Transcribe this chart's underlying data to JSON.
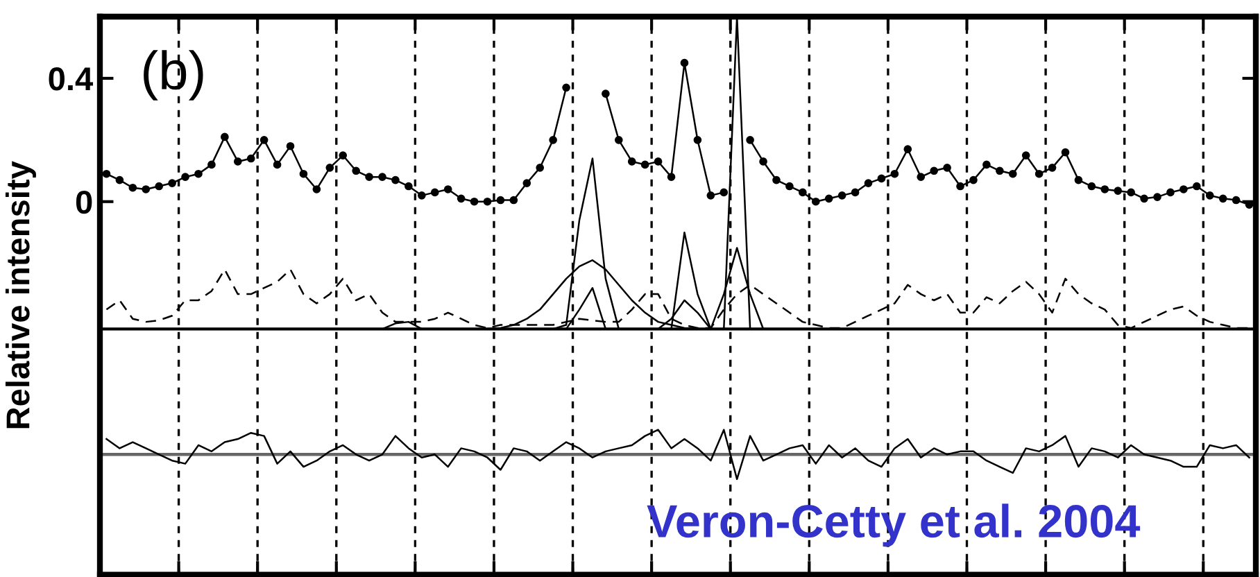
{
  "chart_data": {
    "type": "line",
    "ylabel": "Relative intensity",
    "annotations": [
      "(b)",
      "Veron-Cetty et al. 2004"
    ],
    "categories": [
      null,
      null,
      null,
      null,
      null,
      null,
      null,
      null,
      null,
      null,
      null,
      null,
      null,
      null,
      null,
      null,
      null,
      null,
      null,
      null,
      null,
      null,
      null,
      null,
      null,
      null,
      null,
      null,
      null,
      null,
      null,
      null,
      null,
      null,
      null,
      null,
      null,
      null,
      null,
      null,
      null,
      null,
      null,
      null,
      null,
      null,
      null,
      null,
      null,
      null,
      null,
      null,
      null,
      null,
      null,
      null,
      null,
      null,
      null,
      null,
      null,
      null,
      null,
      null,
      null,
      null,
      null,
      null,
      null,
      null,
      null,
      null,
      null,
      null,
      null,
      null,
      null,
      null,
      null,
      null,
      null,
      null,
      null,
      null,
      null,
      null,
      null,
      null
    ],
    "ylim": [
      -1.21,
      0.6
    ],
    "yticks": [
      0,
      0.4
    ],
    "grid": "x",
    "ref_lines": [
      {
        "axis": "y",
        "value": -0.413,
        "color": "#000000"
      },
      {
        "axis": "y",
        "value": -0.82,
        "color": "#666666"
      }
    ],
    "series": [
      {
        "marker": "circle",
        "color": "#000000",
        "values": [
          0.09,
          0.07,
          0.045,
          0.04,
          0.05,
          0.06,
          0.08,
          0.09,
          0.12,
          0.21,
          0.13,
          0.14,
          0.2,
          0.12,
          0.18,
          0.09,
          0.04,
          0.11,
          0.15,
          0.1,
          0.08,
          0.08,
          0.07,
          0.05,
          0.02,
          0.03,
          0.04,
          0.01,
          0.0,
          0.0,
          0.005,
          0.005,
          0.06,
          0.11,
          0.2,
          0.37,
          null,
          null,
          0.35,
          0.2,
          0.13,
          0.12,
          0.13,
          0.08,
          0.45,
          0.2,
          0.02,
          0.03,
          null,
          0.2,
          0.13,
          0.07,
          0.05,
          0.03,
          0.0,
          0.01,
          0.02,
          0.03,
          0.06,
          0.075,
          0.09,
          0.17,
          0.08,
          0.1,
          0.11,
          0.05,
          0.07,
          0.12,
          0.1,
          0.09,
          0.15,
          0.09,
          0.11,
          0.16,
          0.07,
          0.05,
          0.04,
          0.035,
          0.03,
          0.01,
          0.015,
          0.03,
          0.04,
          0.05,
          0.02,
          0.01,
          0.005,
          -0.01
        ]
      },
      {
        "line_style": "dashed",
        "color": "#000000",
        "values": [
          -0.35,
          -0.32,
          -0.38,
          -0.39,
          -0.385,
          -0.37,
          -0.32,
          -0.32,
          -0.29,
          -0.22,
          -0.3,
          -0.3,
          -0.28,
          -0.26,
          -0.22,
          -0.3,
          -0.33,
          -0.3,
          -0.25,
          -0.32,
          -0.3,
          -0.36,
          -0.39,
          -0.39,
          -0.39,
          -0.38,
          -0.36,
          -0.38,
          -0.4,
          -0.41,
          -0.4,
          -0.4,
          -0.4,
          -0.4,
          -0.4,
          -0.39,
          -0.38,
          -0.385,
          -0.39,
          -0.39,
          -0.35,
          -0.3,
          -0.3,
          -0.38,
          -0.4,
          -0.41,
          -0.41,
          -0.35,
          -0.3,
          -0.27,
          -0.3,
          -0.33,
          -0.36,
          -0.39,
          -0.4,
          -0.41,
          -0.41,
          -0.39,
          -0.37,
          -0.35,
          -0.33,
          -0.27,
          -0.3,
          -0.32,
          -0.3,
          -0.36,
          -0.36,
          -0.31,
          -0.33,
          -0.29,
          -0.26,
          -0.3,
          -0.36,
          -0.25,
          -0.3,
          -0.33,
          -0.35,
          -0.4,
          -0.41,
          -0.39,
          -0.37,
          -0.35,
          -0.34,
          -0.37,
          -0.39,
          -0.4,
          -0.41,
          -0.41
        ]
      },
      {
        "color": "#000000",
        "values": [
          null,
          null,
          null,
          null,
          null,
          null,
          null,
          null,
          null,
          null,
          null,
          null,
          null,
          null,
          null,
          null,
          null,
          null,
          null,
          null,
          null,
          -0.413,
          -0.395,
          -0.39,
          -0.413,
          null,
          null,
          null,
          null,
          null,
          null,
          null,
          null,
          null,
          null,
          null,
          null,
          null,
          null,
          null,
          null,
          null,
          null,
          null,
          null,
          null,
          null,
          null,
          null,
          null,
          null,
          null,
          null,
          null,
          null,
          null,
          null,
          null,
          null,
          null,
          null,
          null,
          null,
          null,
          null,
          null,
          null,
          null,
          null,
          null,
          null,
          null,
          null,
          null,
          null,
          null,
          null,
          null,
          null,
          null,
          null,
          null,
          null,
          null,
          null,
          null,
          null,
          null
        ]
      },
      {
        "color": "#000000",
        "values": [
          null,
          null,
          null,
          null,
          null,
          null,
          null,
          null,
          null,
          null,
          null,
          null,
          null,
          null,
          null,
          null,
          null,
          null,
          null,
          null,
          null,
          null,
          null,
          null,
          null,
          null,
          null,
          null,
          null,
          -0.413,
          -0.41,
          -0.4,
          -0.38,
          -0.35,
          -0.3,
          -0.25,
          -0.21,
          -0.19,
          -0.22,
          -0.27,
          -0.32,
          -0.36,
          -0.39,
          -0.4,
          -0.41,
          -0.413,
          null,
          null,
          null,
          null,
          null,
          null,
          null,
          null,
          null,
          null,
          null,
          null,
          null,
          null,
          null,
          null,
          null,
          null,
          null,
          null,
          null,
          null,
          null,
          null,
          null,
          null,
          null,
          null,
          null,
          null,
          null,
          null,
          null,
          null,
          null,
          null,
          null,
          null,
          null,
          null,
          null,
          null
        ]
      },
      {
        "color": "#000000",
        "values": [
          null,
          null,
          null,
          null,
          null,
          null,
          null,
          null,
          null,
          null,
          null,
          null,
          null,
          null,
          null,
          null,
          null,
          null,
          null,
          null,
          null,
          null,
          null,
          null,
          null,
          null,
          null,
          null,
          null,
          null,
          null,
          null,
          null,
          null,
          -0.413,
          -0.4,
          -0.06,
          0.14,
          -0.25,
          -0.413,
          null,
          null,
          null,
          null,
          null,
          null,
          null,
          null,
          null,
          null,
          null,
          null,
          null,
          null,
          null,
          null,
          null,
          null,
          null,
          null,
          null,
          null,
          null,
          null,
          null,
          null,
          null,
          null,
          null,
          null,
          null,
          null,
          null,
          null,
          null,
          null,
          null,
          null,
          null,
          null,
          null,
          null,
          null,
          null,
          null,
          null,
          null,
          null
        ]
      },
      {
        "color": "#000000",
        "values": [
          null,
          null,
          null,
          null,
          null,
          null,
          null,
          null,
          null,
          null,
          null,
          null,
          null,
          null,
          null,
          null,
          null,
          null,
          null,
          null,
          null,
          null,
          null,
          null,
          null,
          null,
          null,
          null,
          null,
          null,
          null,
          null,
          null,
          null,
          null,
          -0.413,
          -0.35,
          -0.28,
          -0.413,
          null,
          null,
          null,
          null,
          null,
          null,
          null,
          null,
          null,
          null,
          null,
          null,
          null,
          null,
          null,
          null,
          null,
          null,
          null,
          null,
          null,
          null,
          null,
          null,
          null,
          null,
          null,
          null,
          null,
          null,
          null,
          null,
          null,
          null,
          null,
          null,
          null,
          null,
          null,
          null,
          null,
          null,
          null,
          null,
          null,
          null,
          null,
          null,
          null
        ]
      },
      {
        "color": "#000000",
        "values": [
          null,
          null,
          null,
          null,
          null,
          null,
          null,
          null,
          null,
          null,
          null,
          null,
          null,
          null,
          null,
          null,
          null,
          null,
          null,
          null,
          null,
          null,
          null,
          null,
          null,
          null,
          null,
          null,
          null,
          null,
          null,
          null,
          null,
          null,
          null,
          null,
          null,
          null,
          null,
          null,
          null,
          null,
          -0.413,
          -0.38,
          -0.32,
          -0.36,
          -0.413,
          null,
          null,
          null,
          null,
          null,
          null,
          null,
          null,
          null,
          null,
          null,
          null,
          null,
          null,
          null,
          null,
          null,
          null,
          null,
          null,
          null,
          null,
          null,
          null,
          null,
          null,
          null,
          null,
          null,
          null,
          null,
          null,
          null,
          null,
          null,
          null,
          null,
          null,
          null,
          null,
          null
        ]
      },
      {
        "color": "#000000",
        "values": [
          null,
          null,
          null,
          null,
          null,
          null,
          null,
          null,
          null,
          null,
          null,
          null,
          null,
          null,
          null,
          null,
          null,
          null,
          null,
          null,
          null,
          null,
          null,
          null,
          null,
          null,
          null,
          null,
          null,
          null,
          null,
          null,
          null,
          null,
          null,
          null,
          null,
          null,
          null,
          null,
          null,
          null,
          null,
          -0.413,
          -0.1,
          -0.3,
          -0.413,
          null,
          null,
          null,
          null,
          null,
          null,
          null,
          null,
          null,
          null,
          null,
          null,
          null,
          null,
          null,
          null,
          null,
          null,
          null,
          null,
          null,
          null,
          null,
          null,
          null,
          null,
          null,
          null,
          null,
          null,
          null,
          null,
          null,
          null,
          null,
          null,
          null,
          null,
          null,
          null,
          null
        ]
      },
      {
        "color": "#000000",
        "values": [
          null,
          null,
          null,
          null,
          null,
          null,
          null,
          null,
          null,
          null,
          null,
          null,
          null,
          null,
          null,
          null,
          null,
          null,
          null,
          null,
          null,
          null,
          null,
          null,
          null,
          null,
          null,
          null,
          null,
          null,
          null,
          null,
          null,
          null,
          null,
          null,
          null,
          null,
          null,
          null,
          null,
          null,
          null,
          null,
          null,
          null,
          -0.413,
          -0.3,
          -0.15,
          -0.3,
          -0.413,
          null,
          null,
          null,
          null,
          null,
          null,
          null,
          null,
          null,
          null,
          null,
          null,
          null,
          null,
          null,
          null,
          null,
          null,
          null,
          null,
          null,
          null,
          null,
          null,
          null,
          null,
          null,
          null,
          null,
          null,
          null,
          null,
          null,
          null,
          null,
          null,
          null
        ]
      },
      {
        "color": "#000000",
        "values": [
          null,
          null,
          null,
          null,
          null,
          null,
          null,
          null,
          null,
          null,
          null,
          null,
          null,
          null,
          null,
          null,
          null,
          null,
          null,
          null,
          null,
          null,
          null,
          null,
          null,
          null,
          null,
          null,
          null,
          null,
          null,
          null,
          null,
          null,
          null,
          null,
          null,
          null,
          null,
          null,
          null,
          null,
          null,
          null,
          null,
          null,
          null,
          -0.413,
          0.6,
          -0.413,
          null,
          null,
          null,
          null,
          null,
          null,
          null,
          null,
          null,
          null,
          null,
          null,
          null,
          null,
          null,
          null,
          null,
          null,
          null,
          null,
          null,
          null,
          null,
          null,
          null,
          null,
          null,
          null,
          null,
          null,
          null,
          null,
          null,
          null,
          null,
          null,
          null,
          null
        ]
      },
      {
        "color": "#000000",
        "values": [
          -0.77,
          -0.8,
          -0.78,
          -0.8,
          -0.82,
          -0.84,
          -0.85,
          -0.79,
          -0.81,
          -0.78,
          -0.77,
          -0.75,
          -0.76,
          -0.85,
          -0.81,
          -0.86,
          -0.84,
          -0.81,
          -0.79,
          -0.82,
          -0.84,
          -0.82,
          -0.76,
          -0.8,
          -0.83,
          -0.82,
          -0.86,
          -0.8,
          -0.81,
          -0.83,
          -0.87,
          -0.8,
          -0.81,
          -0.84,
          -0.81,
          -0.78,
          -0.8,
          -0.83,
          -0.81,
          -0.8,
          -0.79,
          -0.76,
          -0.74,
          -0.8,
          -0.77,
          -0.8,
          -0.84,
          -0.74,
          -0.9,
          -0.76,
          -0.84,
          -0.82,
          -0.8,
          -0.79,
          -0.85,
          -0.79,
          -0.83,
          -0.8,
          -0.84,
          -0.86,
          -0.8,
          -0.77,
          -0.83,
          -0.8,
          -0.82,
          -0.81,
          -0.81,
          -0.84,
          -0.86,
          -0.88,
          -0.8,
          -0.81,
          -0.79,
          -0.76,
          -0.86,
          -0.8,
          -0.81,
          -0.83,
          -0.79,
          -0.82,
          -0.83,
          -0.84,
          -0.86,
          -0.86,
          -0.79,
          -0.8,
          -0.79,
          -0.83
        ]
      }
    ]
  }
}
